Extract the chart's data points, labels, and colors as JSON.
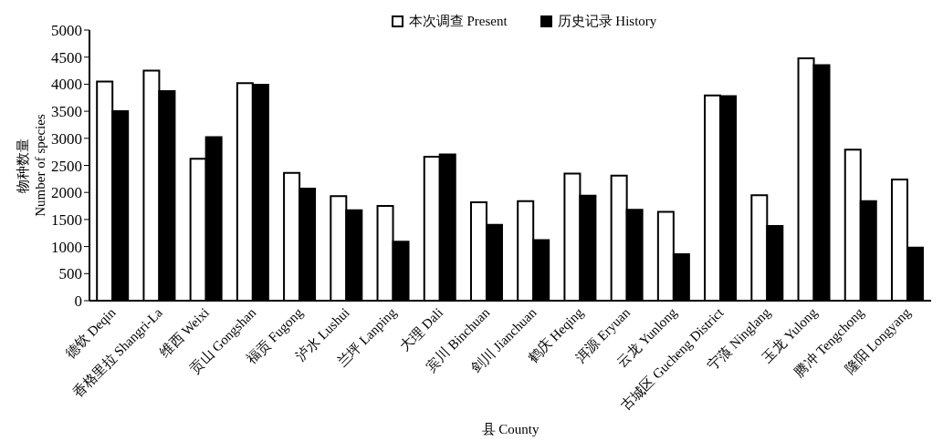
{
  "chart_data": {
    "type": "bar",
    "xlabel": "县 County",
    "ylabel": "物种数量\nNumber of species",
    "categories": [
      "德钦 Deqin",
      "香格里拉 Shangri-La",
      "维西 Weixi",
      "贡山 Gongshan",
      "福贡 Fugong",
      "泸水 Lushui",
      "兰坪 Lanping",
      "大理 Dali",
      "宾川 Binchuan",
      "剑川 Jianchuan",
      "鹤庆 Heqing",
      "洱源 Eryuan",
      "云龙 Yunlong",
      "古城区 Gucheng District",
      "宁蒗 Ninglang",
      "玉龙 Yulong",
      "腾冲 Tengchong",
      "隆阳 Longyang"
    ],
    "series": [
      {
        "name": "本次调查 Present",
        "color": "#ffffff",
        "values": [
          4050,
          4250,
          2620,
          4020,
          2360,
          1930,
          1750,
          2660,
          1820,
          1840,
          2350,
          2310,
          1640,
          3790,
          1950,
          4480,
          2790,
          2240
        ]
      },
      {
        "name": "历史记录 History",
        "color": "#000000",
        "values": [
          3500,
          3870,
          3020,
          3990,
          2070,
          1670,
          1090,
          2700,
          1400,
          1120,
          1940,
          1680,
          860,
          3780,
          1380,
          4350,
          1840,
          980
        ]
      }
    ],
    "ylim": [
      0,
      5000
    ],
    "yticks": [
      0,
      500,
      1000,
      1500,
      2000,
      2500,
      3000,
      3500,
      4000,
      4500,
      5000
    ],
    "grid": false,
    "legend": "top"
  }
}
